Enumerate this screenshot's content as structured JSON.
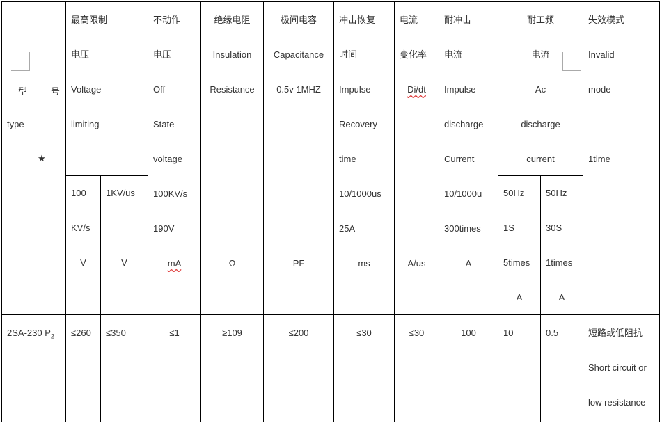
{
  "table": {
    "header": {
      "type": {
        "zh_left": "型",
        "zh_right": "号",
        "en": "type",
        "star": "★"
      },
      "limiting_voltage": {
        "lines": [
          "最高限制",
          "电压",
          "Voltage",
          "limiting"
        ],
        "sub_100kv": [
          "100",
          "KV/s",
          "V"
        ],
        "sub_1kv": [
          "1KV/us",
          "",
          "V"
        ]
      },
      "off_state": {
        "lines": [
          "不动作",
          "电压",
          "Off",
          "State",
          "voltage",
          "100KV/s",
          "190V",
          "mA"
        ]
      },
      "insulation": {
        "lines": [
          "绝缘电阻",
          "Insulation",
          "Resistance",
          "",
          "",
          "",
          "",
          "Ω"
        ]
      },
      "capacitance": {
        "lines": [
          "极间电容",
          "Capacitance",
          "0.5v 1MHZ",
          "",
          "",
          "",
          "",
          "PF"
        ]
      },
      "recovery": {
        "lines": [
          "冲击恢复",
          "时间",
          "Impulse",
          "Recovery",
          "time",
          "10/1000us",
          "25A",
          "ms"
        ]
      },
      "current_rate": {
        "lines": [
          "电流",
          "变化率",
          "Di/dt",
          "",
          "",
          "",
          "",
          "A/us"
        ]
      },
      "impulse_discharge": {
        "lines": [
          "耐冲击",
          "电流",
          "Impulse",
          "discharge",
          "Current",
          "10/1000u",
          "300times",
          "A"
        ]
      },
      "ac_discharge": {
        "lines": [
          "耐工频",
          "电流",
          "Ac",
          "discharge",
          "current"
        ],
        "sub_1s": [
          "50Hz",
          "1S",
          "5times",
          "A"
        ],
        "sub_30s": [
          "50Hz",
          "30S",
          "1times",
          "A"
        ]
      },
      "failure_mode": {
        "lines": [
          "失效模式",
          "Invalid",
          "mode",
          "",
          "1time"
        ]
      }
    },
    "rows": [
      {
        "type": "2SA-230 P",
        "type_sub": "2",
        "limit_100kv": "≤260",
        "limit_1kv": "≤350",
        "off_state": "≤1",
        "insulation": "≥109",
        "capacitance": "≤200",
        "recovery": "≤30",
        "current_rate": "≤30",
        "impulse": "100",
        "ac_1s": "10",
        "ac_30s": "0.5",
        "failure": [
          "短路或低阻抗",
          "Short circuit or",
          "low resistance"
        ]
      }
    ]
  }
}
